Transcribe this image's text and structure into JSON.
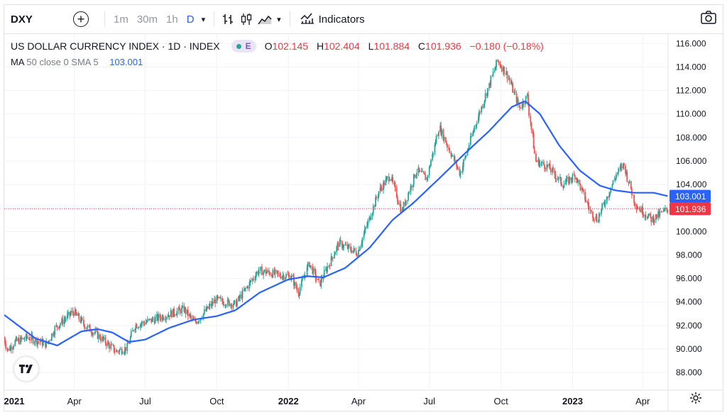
{
  "toolbar": {
    "symbol": "DXY",
    "add_symbol": "+",
    "timeframes": [
      {
        "label": "1m",
        "active": false
      },
      {
        "label": "30m",
        "active": false
      },
      {
        "label": "1h",
        "active": false
      },
      {
        "label": "D",
        "active": true
      }
    ],
    "indicators_label": "Indicators"
  },
  "legend": {
    "title": "US DOLLAR CURRENCY INDEX · 1D · INDEX",
    "badge": "E",
    "open": "102.145",
    "high": "102.404",
    "low": "101.884",
    "close": "101.936",
    "change": "−0.180 (−0.18%)",
    "ma_label": "MA",
    "ma_params": "50 close 0 SMA 5",
    "ma_value": "103.001"
  },
  "colors": {
    "up": "#26a69a",
    "down": "#ef5350",
    "ma_line": "#2962ff",
    "last_price": "#f23645",
    "grid": "#f0f3fa"
  },
  "icons": [
    "add-icon",
    "chevron-down-icon",
    "bar-style-icon",
    "candle-style-icon",
    "area-style-icon",
    "indicators-icon",
    "camera-icon",
    "gear-icon",
    "tradingview-logo"
  ],
  "chart_data": {
    "type": "candlestick",
    "x_axis_ticks": [
      "2021",
      "Apr",
      "Jul",
      "Oct",
      "2022",
      "Apr",
      "Jul",
      "Oct",
      "2023",
      "Apr"
    ],
    "y_axis_ticks": [
      "88.000",
      "90.000",
      "92.000",
      "94.000",
      "96.000",
      "98.000",
      "100.000",
      "102.000",
      "104.000",
      "106.000",
      "108.000",
      "110.000",
      "112.000",
      "114.000",
      "116.000"
    ],
    "ylim": [
      86.5,
      116.8
    ],
    "x_range": [
      "2021-01-01",
      "2023-05-31"
    ],
    "grid": true,
    "last_price_label": "101.936",
    "ma_label_value": "103.001",
    "price_path": [
      [
        "2021-01-01",
        90.9
      ],
      [
        "2021-01-06",
        89.9
      ],
      [
        "2021-01-15",
        90.6
      ],
      [
        "2021-02-01",
        91.0
      ],
      [
        "2021-02-25",
        90.4
      ],
      [
        "2021-03-08",
        91.8
      ],
      [
        "2021-03-31",
        93.2
      ],
      [
        "2021-04-15",
        92.0
      ],
      [
        "2021-05-01",
        91.2
      ],
      [
        "2021-05-25",
        89.8
      ],
      [
        "2021-06-08",
        90.1
      ],
      [
        "2021-06-18",
        92.0
      ],
      [
        "2021-07-07",
        92.4
      ],
      [
        "2021-08-20",
        93.4
      ],
      [
        "2021-09-03",
        92.2
      ],
      [
        "2021-09-30",
        94.2
      ],
      [
        "2021-10-25",
        93.8
      ],
      [
        "2021-11-24",
        96.7
      ],
      [
        "2021-12-20",
        96.3
      ],
      [
        "2022-01-05",
        96.2
      ],
      [
        "2022-01-14",
        94.8
      ],
      [
        "2022-01-28",
        97.3
      ],
      [
        "2022-02-10",
        95.5
      ],
      [
        "2022-03-07",
        99.0
      ],
      [
        "2022-03-31",
        98.2
      ],
      [
        "2022-04-28",
        103.5
      ],
      [
        "2022-05-12",
        104.8
      ],
      [
        "2022-05-27",
        101.7
      ],
      [
        "2022-06-15",
        105.2
      ],
      [
        "2022-06-28",
        104.5
      ],
      [
        "2022-07-14",
        108.9
      ],
      [
        "2022-08-10",
        104.9
      ],
      [
        "2022-08-29",
        109.0
      ],
      [
        "2022-09-27",
        114.5
      ],
      [
        "2022-10-10",
        113.3
      ],
      [
        "2022-10-25",
        110.5
      ],
      [
        "2022-11-04",
        111.5
      ],
      [
        "2022-11-15",
        106.0
      ],
      [
        "2022-12-01",
        105.5
      ],
      [
        "2022-12-20",
        104.0
      ],
      [
        "2023-01-05",
        104.8
      ],
      [
        "2023-01-25",
        101.6
      ],
      [
        "2023-02-02",
        101.0
      ],
      [
        "2023-02-27",
        104.9
      ],
      [
        "2023-03-08",
        105.7
      ],
      [
        "2023-03-23",
        102.3
      ],
      [
        "2023-04-13",
        101.0
      ],
      [
        "2023-05-01",
        101.8
      ],
      [
        "2023-05-04",
        101.936
      ]
    ],
    "ma_path": [
      [
        "2021-01-01",
        92.9
      ],
      [
        "2021-02-10",
        90.9
      ],
      [
        "2021-03-10",
        90.3
      ],
      [
        "2021-04-10",
        91.5
      ],
      [
        "2021-05-01",
        91.7
      ],
      [
        "2021-05-20",
        91.4
      ],
      [
        "2021-06-10",
        90.6
      ],
      [
        "2021-07-01",
        90.8
      ],
      [
        "2021-08-01",
        91.8
      ],
      [
        "2021-09-01",
        92.5
      ],
      [
        "2021-10-01",
        92.8
      ],
      [
        "2021-10-25",
        93.3
      ],
      [
        "2021-11-25",
        94.8
      ],
      [
        "2021-12-31",
        95.9
      ],
      [
        "2022-01-25",
        96.2
      ],
      [
        "2022-02-15",
        96.1
      ],
      [
        "2022-03-15",
        96.9
      ],
      [
        "2022-04-15",
        98.6
      ],
      [
        "2022-05-15",
        101.0
      ],
      [
        "2022-06-10",
        102.4
      ],
      [
        "2022-07-15",
        104.6
      ],
      [
        "2022-08-15",
        106.6
      ],
      [
        "2022-09-15",
        108.5
      ],
      [
        "2022-10-15",
        110.6
      ],
      [
        "2022-11-01",
        111.1
      ],
      [
        "2022-11-20",
        110.0
      ],
      [
        "2022-12-15",
        107.3
      ],
      [
        "2023-01-10",
        105.2
      ],
      [
        "2023-02-05",
        103.9
      ],
      [
        "2023-02-25",
        103.5
      ],
      [
        "2023-03-20",
        103.3
      ],
      [
        "2023-04-15",
        103.3
      ],
      [
        "2023-05-04",
        103.0
      ]
    ]
  }
}
